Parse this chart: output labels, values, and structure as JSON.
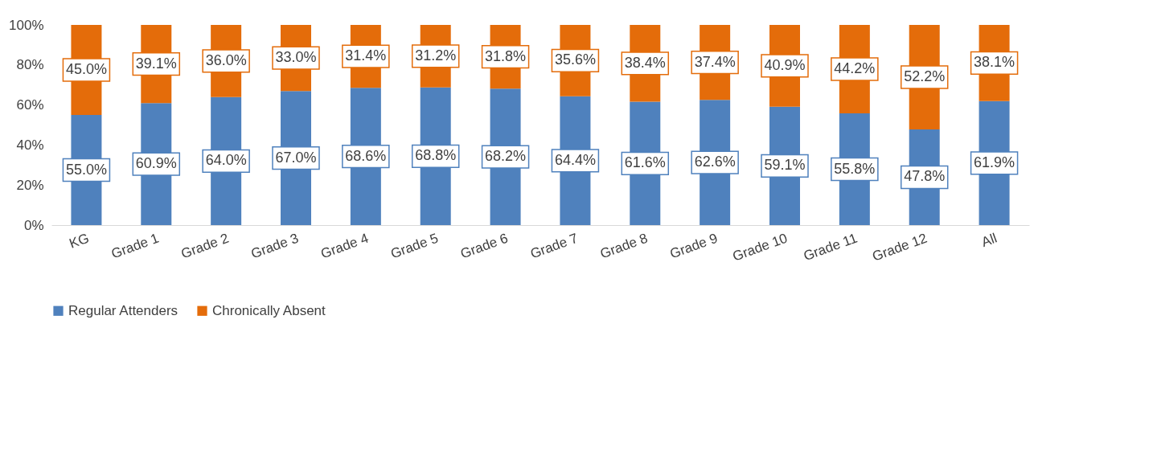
{
  "chart_data": {
    "type": "bar",
    "stacked": true,
    "categories": [
      "KG",
      "Grade 1",
      "Grade 2",
      "Grade 3",
      "Grade 4",
      "Grade 5",
      "Grade 6",
      "Grade 7",
      "Grade 8",
      "Grade 9",
      "Grade 10",
      "Grade 11",
      "Grade 12",
      "All"
    ],
    "series": [
      {
        "name": "Regular Attenders",
        "color": "#4f81bd",
        "values": [
          55.0,
          60.9,
          64.0,
          67.0,
          68.6,
          68.8,
          68.2,
          64.4,
          61.6,
          62.6,
          59.1,
          55.8,
          47.8,
          61.9
        ],
        "value_labels": [
          "55.0%",
          "60.9%",
          "64.0%",
          "67.0%",
          "68.6%",
          "68.8%",
          "68.2%",
          "64.4%",
          "61.6%",
          "62.6%",
          "59.1%",
          "55.8%",
          "47.8%",
          "61.9%"
        ]
      },
      {
        "name": "Chronically Absent",
        "color": "#e46c0a",
        "values": [
          45.0,
          39.1,
          36.0,
          33.0,
          31.4,
          31.2,
          31.8,
          35.6,
          38.4,
          37.4,
          40.9,
          44.2,
          52.2,
          38.1
        ],
        "value_labels": [
          "45.0%",
          "39.1%",
          "36.0%",
          "33.0%",
          "31.4%",
          "31.2%",
          "31.8%",
          "35.6%",
          "38.4%",
          "37.4%",
          "40.9%",
          "44.2%",
          "52.2%",
          "38.1%"
        ]
      }
    ],
    "ylim": [
      0,
      100
    ],
    "yticks": [
      {
        "value": 0,
        "label": "0%"
      },
      {
        "value": 20,
        "label": "20%"
      },
      {
        "value": 40,
        "label": "40%"
      },
      {
        "value": 60,
        "label": "60%"
      },
      {
        "value": 80,
        "label": "80%"
      },
      {
        "value": 100,
        "label": "100%"
      }
    ],
    "grid": false,
    "legend": "bottom"
  }
}
